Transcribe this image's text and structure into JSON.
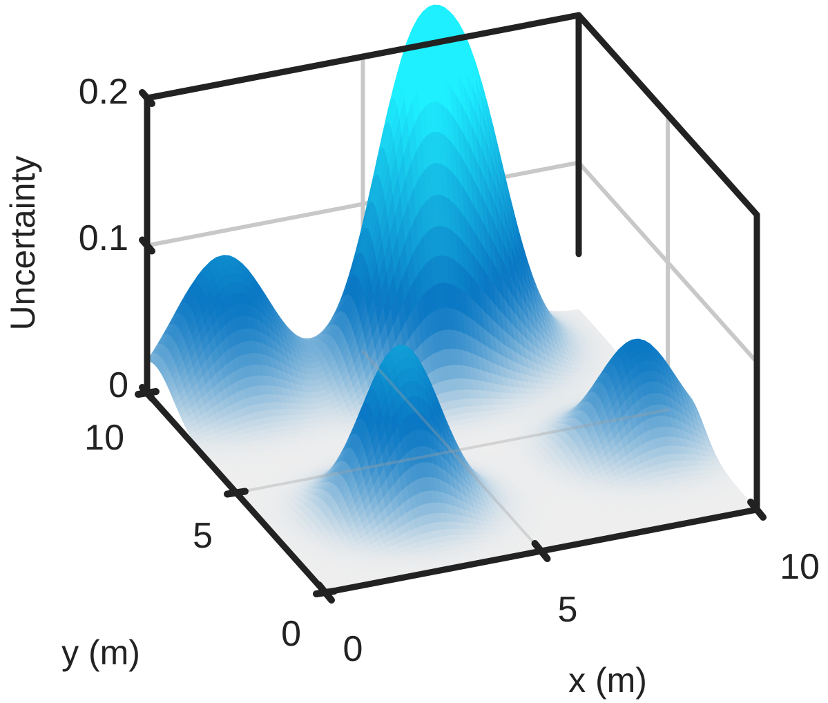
{
  "chart_data": {
    "type": "surface3d",
    "title": "",
    "xlabel": "x (m)",
    "ylabel": "y (m)",
    "zlabel": "Uncertainty",
    "xlim": [
      0,
      10
    ],
    "ylim": [
      0,
      10
    ],
    "zlim": [
      0,
      0.2
    ],
    "x_ticks": [
      "0",
      "5",
      "10"
    ],
    "y_ticks": [
      "0",
      "5",
      "10"
    ],
    "z_ticks": [
      "0",
      "0.1",
      "0.2"
    ],
    "grid": true,
    "colormap": [
      "#eeeeee",
      "#0a78c4",
      "#1ef0ff"
    ],
    "peaks": [
      {
        "x": 5.5,
        "y": 8.5,
        "height": 0.19,
        "sigma": 0.9
      },
      {
        "x": 7.0,
        "y": 9.0,
        "height": 0.17,
        "sigma": 0.9
      },
      {
        "x": 3.0,
        "y": 3.0,
        "height": 0.11,
        "sigma": 0.85
      },
      {
        "x": 1.6,
        "y": 9.5,
        "height": 0.09,
        "sigma": 1.0
      },
      {
        "x": 8.8,
        "y": 3.8,
        "height": 0.07,
        "sigma": 0.85
      }
    ]
  }
}
